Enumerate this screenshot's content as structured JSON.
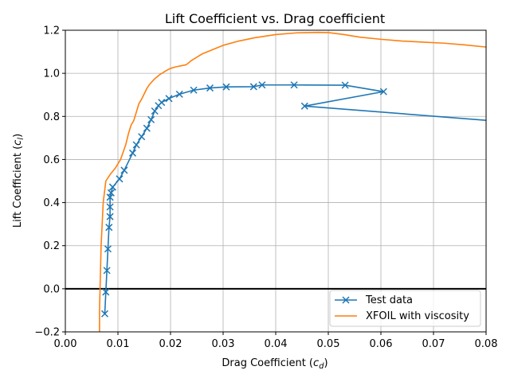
{
  "chart_data": {
    "type": "line",
    "title": "Lift Coefficient vs. Drag coefficient",
    "xlabel": "Drag Coefficient (",
    "xlabel_sub": "d",
    "ylabel": "Lift Coefficient (",
    "ylabel_sub": "l",
    "label_close": ")",
    "label_c": "c",
    "xlim": [
      0,
      0.08
    ],
    "ylim": [
      -0.2,
      1.2
    ],
    "xticks": [
      0,
      0.01,
      0.02,
      0.03,
      0.04,
      0.05,
      0.06,
      0.07,
      0.08
    ],
    "xtick_labels": [
      "0.00",
      "0.01",
      "0.02",
      "0.03",
      "0.04",
      "0.05",
      "0.06",
      "0.07",
      "0.08"
    ],
    "yticks": [
      -0.2,
      0.0,
      0.2,
      0.4,
      0.6,
      0.8,
      1.0,
      1.2
    ],
    "ytick_labels": [
      "−0.2",
      "0.0",
      "0.2",
      "0.4",
      "0.6",
      "0.8",
      "1.0",
      "1.2"
    ],
    "grid": true,
    "hline_y": 0,
    "legend_position": "lower-right",
    "series": [
      {
        "name": "Test data",
        "color": "#1f77b4",
        "marker": "x",
        "x": [
          0.0075,
          0.0077,
          0.0079,
          0.0081,
          0.0083,
          0.0085,
          0.0085,
          0.0085,
          0.0087,
          0.009,
          0.0103,
          0.0112,
          0.0128,
          0.0135,
          0.0145,
          0.0155,
          0.0163,
          0.017,
          0.0177,
          0.0183,
          0.0197,
          0.0217,
          0.0244,
          0.0275,
          0.0306,
          0.0358,
          0.0374,
          0.0435,
          0.0532,
          0.0605,
          0.0455,
          0.08
        ],
        "y": [
          -0.116,
          -0.015,
          0.085,
          0.185,
          0.285,
          0.335,
          0.38,
          0.425,
          0.445,
          0.472,
          0.51,
          0.55,
          0.63,
          0.668,
          0.706,
          0.745,
          0.785,
          0.825,
          0.85,
          0.865,
          0.883,
          0.903,
          0.922,
          0.932,
          0.937,
          0.938,
          0.946,
          0.946,
          0.945,
          0.915,
          0.848,
          0.782
        ]
      },
      {
        "name": "XFOIL with viscosity",
        "color": "#ff7f0e",
        "marker": "none",
        "x": [
          0.0065,
          0.0065,
          0.0066,
          0.0067,
          0.0068,
          0.007,
          0.0072,
          0.0077,
          0.0085,
          0.0095,
          0.0105,
          0.0115,
          0.012,
          0.0125,
          0.013,
          0.0135,
          0.014,
          0.0145,
          0.015,
          0.0155,
          0.016,
          0.0165,
          0.017,
          0.0175,
          0.018,
          0.0185,
          0.019,
          0.0195,
          0.02,
          0.021,
          0.022,
          0.023,
          0.024,
          0.026,
          0.028,
          0.03,
          0.033,
          0.036,
          0.04,
          0.044,
          0.048,
          0.05,
          0.053,
          0.056,
          0.06,
          0.064,
          0.068,
          0.072,
          0.076,
          0.08
        ],
        "y": [
          -0.2,
          -0.1,
          0.0,
          0.1,
          0.2,
          0.3,
          0.4,
          0.5,
          0.53,
          0.56,
          0.6,
          0.67,
          0.72,
          0.76,
          0.78,
          0.82,
          0.86,
          0.88,
          0.905,
          0.93,
          0.948,
          0.962,
          0.975,
          0.985,
          0.995,
          1.002,
          1.01,
          1.017,
          1.023,
          1.03,
          1.035,
          1.04,
          1.06,
          1.09,
          1.11,
          1.13,
          1.15,
          1.165,
          1.18,
          1.188,
          1.19,
          1.189,
          1.18,
          1.168,
          1.158,
          1.15,
          1.145,
          1.14,
          1.132,
          1.122
        ]
      }
    ]
  }
}
